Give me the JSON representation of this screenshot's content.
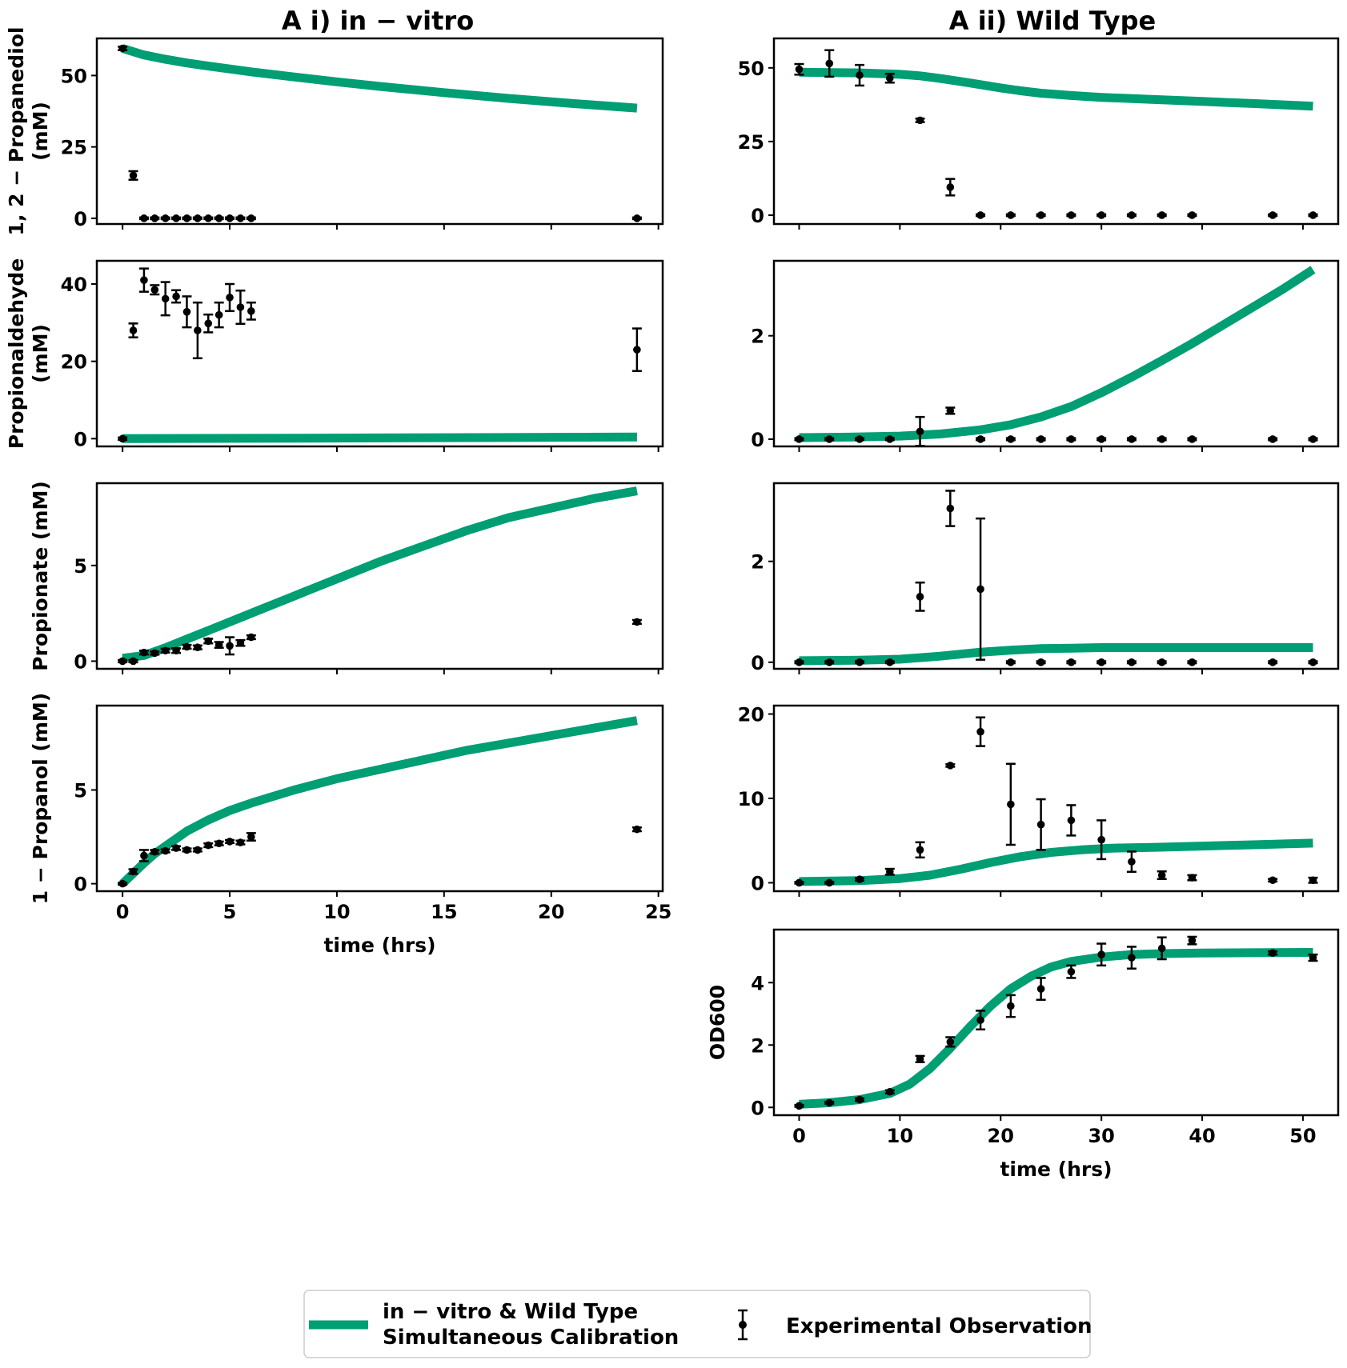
{
  "titles": {
    "left": "A i) in − vitro",
    "right": "A ii) Wild Type"
  },
  "legend": {
    "line_label_1": "in − vitro & Wild Type",
    "line_label_2": "Simultaneous Calibration",
    "obs_label": "Experimental Observation"
  },
  "colors": {
    "model": "#009E73",
    "obs": "#000000"
  },
  "chart_data": [
    {
      "id": "iv-pd",
      "type": "line",
      "title": "A i) in − vitro",
      "ylabel": [
        "1, 2 − Propanediol",
        "(mM)"
      ],
      "xlabel": "",
      "xlim": [
        -1.2,
        25.2
      ],
      "ylim": [
        -2,
        63
      ],
      "xticks": [
        0,
        5,
        10,
        15,
        20,
        25
      ],
      "yticks": [
        0,
        25,
        50
      ],
      "show_xtick_labels": false,
      "model": {
        "x": [
          0,
          1,
          2,
          3,
          4,
          6,
          8,
          10,
          12,
          15,
          18,
          21,
          24
        ],
        "y": [
          59.5,
          57.2,
          55.7,
          54.4,
          53.3,
          51.3,
          49.5,
          47.8,
          46.2,
          44.0,
          42.0,
          40.2,
          38.6
        ]
      },
      "obs": {
        "x": [
          0,
          0.5,
          1,
          1.5,
          2,
          2.5,
          3,
          3.5,
          4,
          4.5,
          5,
          5.5,
          6,
          24
        ],
        "y": [
          59.5,
          15,
          0,
          0,
          0,
          0,
          0,
          0,
          0,
          0,
          0,
          0,
          0,
          0
        ],
        "err": [
          0.6,
          1.5,
          0.3,
          0.3,
          0.3,
          0.3,
          0.3,
          0.3,
          0.3,
          0.3,
          0.3,
          0.3,
          0.3,
          0.3
        ]
      }
    },
    {
      "id": "wt-pd",
      "type": "line",
      "title": "A ii) Wild Type",
      "ylabel": [],
      "xlabel": "",
      "xlim": [
        -2.5,
        53.5
      ],
      "ylim": [
        -3,
        60
      ],
      "xticks": [
        0,
        10,
        20,
        30,
        40,
        50
      ],
      "yticks": [
        0,
        25,
        50
      ],
      "show_xtick_labels": false,
      "model": {
        "x": [
          0,
          6,
          10,
          12,
          14,
          16,
          18,
          20,
          22,
          24,
          27,
          30,
          35,
          40,
          45,
          51
        ],
        "y": [
          48.5,
          48.3,
          47.8,
          47.3,
          46.4,
          45.4,
          44.3,
          43.2,
          42.2,
          41.4,
          40.6,
          40.0,
          39.3,
          38.6,
          37.9,
          37.0
        ]
      },
      "obs": {
        "x": [
          0,
          3,
          6,
          9,
          12,
          15,
          18,
          21,
          24,
          27,
          30,
          33,
          36,
          39,
          47,
          51
        ],
        "y": [
          49.5,
          51.5,
          47.5,
          46.5,
          32.2,
          9.5,
          0,
          0,
          0,
          0,
          0,
          0,
          0,
          0,
          0,
          0
        ],
        "err": [
          1.8,
          4.5,
          3.5,
          1.5,
          0.6,
          2.8,
          0.3,
          0.3,
          0.3,
          0.3,
          0.3,
          0.3,
          0.3,
          0.3,
          0.3,
          0.3
        ]
      }
    },
    {
      "id": "iv-pa",
      "type": "line",
      "title": "",
      "ylabel": [
        "Propionaldehyde",
        "(mM)"
      ],
      "xlabel": "",
      "xlim": [
        -1.2,
        25.2
      ],
      "ylim": [
        -2,
        46
      ],
      "xticks": [
        0,
        5,
        10,
        15,
        20,
        25
      ],
      "yticks": [
        0,
        20,
        40
      ],
      "show_xtick_labels": false,
      "model": {
        "x": [
          0,
          6,
          12,
          18,
          24
        ],
        "y": [
          0,
          0.1,
          0.2,
          0.3,
          0.45
        ]
      },
      "obs": {
        "x": [
          0,
          0.5,
          1,
          1.5,
          2,
          2.5,
          3,
          3.5,
          4,
          4.5,
          5,
          5.5,
          6,
          24
        ],
        "y": [
          0,
          28,
          41,
          38.5,
          36.2,
          36.8,
          32.8,
          28,
          29.8,
          32,
          36.5,
          34,
          33,
          23
        ],
        "err": [
          0.3,
          1.8,
          3,
          1.2,
          4.3,
          1.6,
          4,
          7.2,
          2.3,
          3.2,
          3.5,
          4.3,
          2.2,
          5.5
        ]
      }
    },
    {
      "id": "wt-pa",
      "type": "line",
      "title": "",
      "ylabel": [],
      "xlabel": "",
      "xlim": [
        -2.5,
        53.5
      ],
      "ylim": [
        -0.14,
        3.45
      ],
      "xticks": [
        0,
        10,
        20,
        30,
        40,
        50
      ],
      "yticks": [
        0,
        2
      ],
      "show_xtick_labels": false,
      "model": {
        "x": [
          0,
          5,
          10,
          14,
          18,
          21,
          24,
          27,
          30,
          33,
          36,
          39,
          42,
          45,
          48,
          51
        ],
        "y": [
          0.03,
          0.04,
          0.06,
          0.1,
          0.18,
          0.28,
          0.43,
          0.63,
          0.9,
          1.2,
          1.52,
          1.85,
          2.2,
          2.55,
          2.9,
          3.28
        ]
      },
      "obs": {
        "x": [
          0,
          3,
          6,
          9,
          12,
          15,
          18,
          21,
          24,
          27,
          30,
          33,
          36,
          39,
          47,
          51
        ],
        "y": [
          0,
          0,
          0,
          0,
          0.15,
          0.55,
          0,
          0,
          0,
          0,
          0,
          0,
          0,
          0,
          0,
          0
        ],
        "err": [
          0.02,
          0.02,
          0.02,
          0.02,
          0.28,
          0.06,
          0.02,
          0.02,
          0.02,
          0.02,
          0.02,
          0.02,
          0.02,
          0.02,
          0.02,
          0.02
        ]
      }
    },
    {
      "id": "iv-pn",
      "type": "line",
      "title": "",
      "ylabel": [
        "Propionate (mM)"
      ],
      "xlabel": "",
      "xlim": [
        -1.2,
        25.2
      ],
      "ylim": [
        -0.4,
        9.3
      ],
      "xticks": [
        0,
        5,
        10,
        15,
        20,
        25
      ],
      "yticks": [
        0,
        5
      ],
      "show_xtick_labels": false,
      "model": {
        "x": [
          0,
          1,
          2,
          3,
          4,
          6,
          8,
          10,
          12,
          14,
          16,
          18,
          20,
          22,
          24
        ],
        "y": [
          0.15,
          0.3,
          0.7,
          1.15,
          1.6,
          2.5,
          3.4,
          4.3,
          5.2,
          6.0,
          6.8,
          7.5,
          8.0,
          8.5,
          8.9
        ]
      },
      "obs": {
        "x": [
          0,
          0.5,
          1,
          1.5,
          2,
          2.5,
          3,
          3.5,
          4,
          4.5,
          5,
          5.5,
          6,
          24
        ],
        "y": [
          0,
          0,
          0.45,
          0.42,
          0.55,
          0.55,
          0.75,
          0.72,
          1.05,
          0.85,
          0.8,
          0.95,
          1.25,
          2.05
        ],
        "err": [
          0.06,
          0.06,
          0.1,
          0.08,
          0.1,
          0.12,
          0.1,
          0.1,
          0.12,
          0.15,
          0.45,
          0.15,
          0.1,
          0.1
        ]
      }
    },
    {
      "id": "wt-pn",
      "type": "line",
      "title": "",
      "ylabel": [],
      "xlabel": "",
      "xlim": [
        -2.5,
        53.5
      ],
      "ylim": [
        -0.13,
        3.55
      ],
      "xticks": [
        0,
        10,
        20,
        30,
        40,
        50
      ],
      "yticks": [
        0,
        2
      ],
      "show_xtick_labels": false,
      "model": {
        "x": [
          0,
          6,
          10,
          14,
          18,
          21,
          24,
          27,
          30,
          35,
          40,
          45,
          51
        ],
        "y": [
          0.03,
          0.04,
          0.06,
          0.12,
          0.2,
          0.24,
          0.27,
          0.28,
          0.29,
          0.29,
          0.29,
          0.29,
          0.29
        ]
      },
      "obs": {
        "x": [
          0,
          3,
          6,
          9,
          12,
          15,
          18,
          21,
          24,
          27,
          30,
          33,
          36,
          39,
          47,
          51
        ],
        "y": [
          0,
          0,
          0,
          0,
          1.3,
          3.05,
          1.45,
          0,
          0,
          0,
          0,
          0,
          0,
          0,
          0,
          0
        ],
        "err": [
          0.02,
          0.02,
          0.02,
          0.02,
          0.28,
          0.35,
          1.4,
          0.02,
          0.02,
          0.02,
          0.02,
          0.02,
          0.02,
          0.02,
          0.02,
          0.02
        ]
      }
    },
    {
      "id": "iv-pr",
      "type": "line",
      "title": "",
      "ylabel": [
        "1 − Propanol (mM)"
      ],
      "xlabel": "time (hrs)",
      "xlim": [
        -1.2,
        25.2
      ],
      "ylim": [
        -0.4,
        9.5
      ],
      "xticks": [
        0,
        5,
        10,
        15,
        20,
        25
      ],
      "yticks": [
        0,
        5
      ],
      "show_xtick_labels": true,
      "model": {
        "x": [
          0,
          0.5,
          1,
          1.5,
          2,
          3,
          4,
          5,
          6,
          8,
          10,
          12,
          14,
          16,
          18,
          20,
          22,
          24
        ],
        "y": [
          0,
          0.55,
          1.1,
          1.6,
          2.0,
          2.8,
          3.4,
          3.9,
          4.3,
          5.0,
          5.6,
          6.1,
          6.6,
          7.1,
          7.5,
          7.9,
          8.3,
          8.7
        ]
      },
      "obs": {
        "x": [
          0,
          0.5,
          1,
          1.5,
          2,
          2.5,
          3,
          3.5,
          4,
          4.5,
          5,
          5.5,
          6,
          24
        ],
        "y": [
          0,
          0.65,
          1.5,
          1.7,
          1.75,
          1.9,
          1.8,
          1.8,
          2.05,
          2.15,
          2.25,
          2.2,
          2.5,
          2.9
        ],
        "err": [
          0.05,
          0.12,
          0.3,
          0.1,
          0.08,
          0.1,
          0.08,
          0.08,
          0.1,
          0.1,
          0.08,
          0.1,
          0.2,
          0.1
        ]
      }
    },
    {
      "id": "wt-pr",
      "type": "line",
      "title": "",
      "ylabel": [],
      "xlabel": "",
      "xlim": [
        -2.5,
        53.5
      ],
      "ylim": [
        -1,
        21
      ],
      "xticks": [
        0,
        10,
        20,
        30,
        40,
        50
      ],
      "yticks": [
        0,
        10,
        20
      ],
      "show_xtick_labels": false,
      "model": {
        "x": [
          0,
          6,
          10,
          13,
          16,
          19,
          22,
          25,
          28,
          31,
          35,
          40,
          45,
          51
        ],
        "y": [
          0.15,
          0.25,
          0.5,
          0.9,
          1.6,
          2.4,
          3.1,
          3.6,
          3.9,
          4.1,
          4.2,
          4.35,
          4.5,
          4.7
        ]
      },
      "obs": {
        "x": [
          0,
          3,
          6,
          9,
          12,
          15,
          18,
          21,
          24,
          27,
          30,
          33,
          36,
          39,
          47,
          51
        ],
        "y": [
          0,
          0,
          0.4,
          1.3,
          3.9,
          13.9,
          17.9,
          9.3,
          6.9,
          7.4,
          5.1,
          2.5,
          0.9,
          0.6,
          0.3,
          0.3
        ],
        "err": [
          0.1,
          0.1,
          0.15,
          0.35,
          0.9,
          0.15,
          1.7,
          4.8,
          3.0,
          1.8,
          2.3,
          1.2,
          0.45,
          0.3,
          0.15,
          0.3
        ]
      }
    },
    {
      "id": "wt-od",
      "type": "line",
      "title": "",
      "ylabel": [
        "OD600"
      ],
      "xlabel": "time (hrs)",
      "xlim": [
        -2.5,
        53.5
      ],
      "ylim": [
        -0.25,
        5.7
      ],
      "xticks": [
        0,
        10,
        20,
        30,
        40,
        50
      ],
      "yticks": [
        0,
        2,
        4
      ],
      "show_xtick_labels": true,
      "model": {
        "x": [
          0,
          3,
          6,
          9,
          11,
          13,
          15,
          17,
          19,
          21,
          23,
          25,
          27,
          30,
          33,
          36,
          40,
          45,
          51
        ],
        "y": [
          0.1,
          0.15,
          0.25,
          0.45,
          0.75,
          1.25,
          1.9,
          2.6,
          3.25,
          3.8,
          4.2,
          4.5,
          4.68,
          4.82,
          4.9,
          4.93,
          4.95,
          4.96,
          4.97
        ]
      },
      "obs": {
        "x": [
          0,
          3,
          6,
          9,
          12,
          15,
          18,
          21,
          24,
          27,
          30,
          33,
          36,
          39,
          47,
          51
        ],
        "y": [
          0.05,
          0.15,
          0.25,
          0.5,
          1.55,
          2.1,
          2.8,
          3.25,
          3.8,
          4.35,
          4.9,
          4.8,
          5.1,
          5.35,
          4.95,
          4.8
        ],
        "err": [
          0.03,
          0.03,
          0.04,
          0.05,
          0.1,
          0.15,
          0.3,
          0.35,
          0.35,
          0.2,
          0.35,
          0.35,
          0.35,
          0.12,
          0.05,
          0.1
        ]
      }
    }
  ]
}
